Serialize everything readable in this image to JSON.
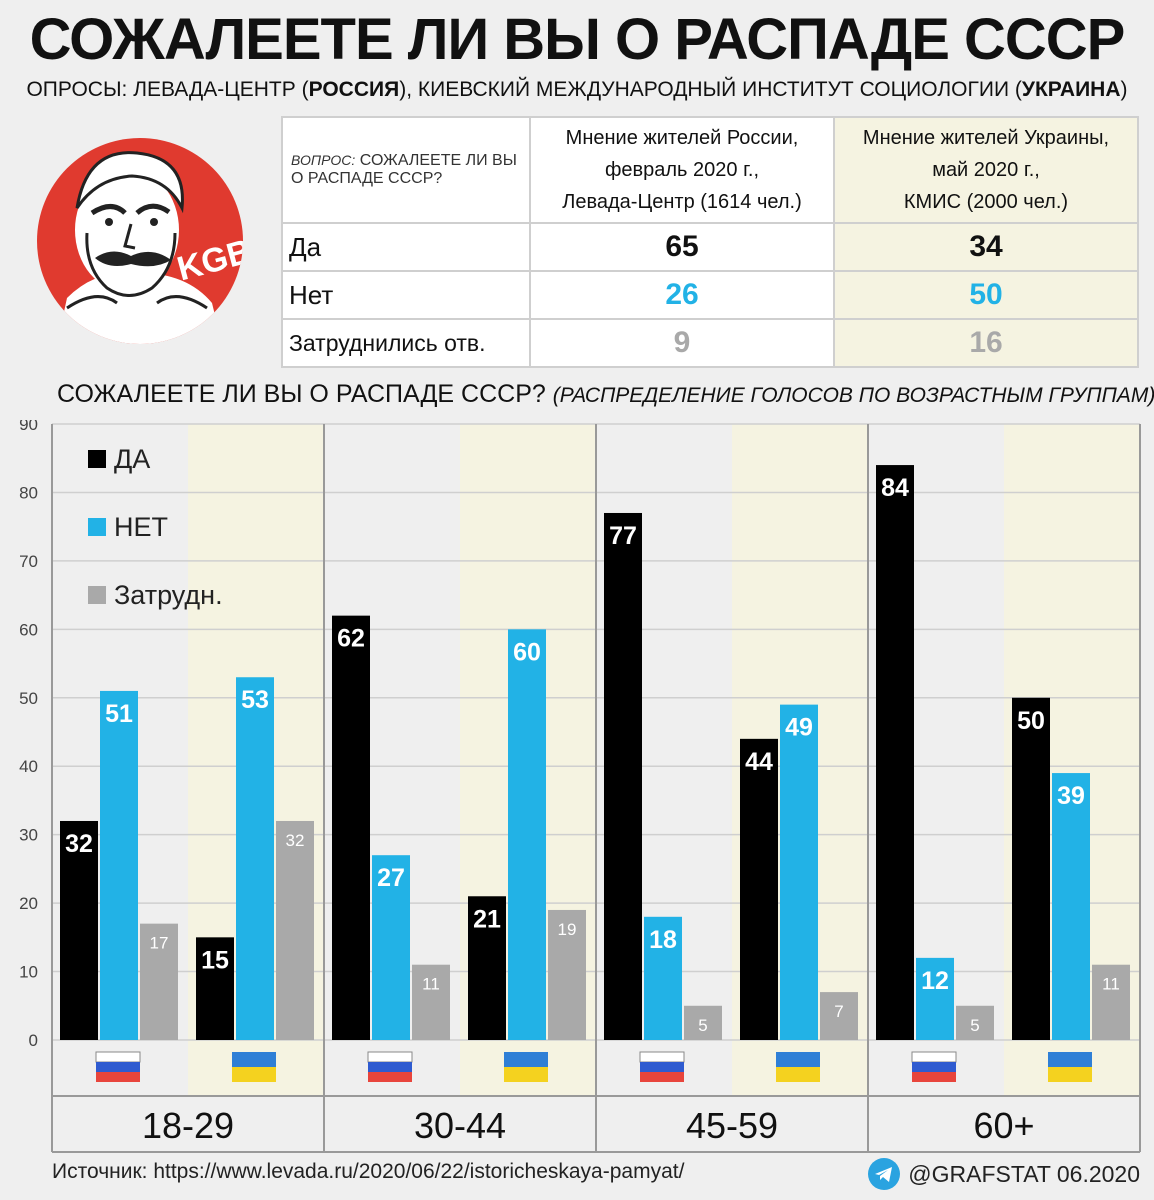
{
  "title": "СОЖАЛЕЕТЕ ЛИ ВЫ О РАСПАДЕ СССР",
  "subtitle": {
    "prefix": "ОПРОСЫ: ЛЕВАДА-ЦЕНТР (",
    "russia": "РОССИЯ",
    "middle": "), КИЕВСКИЙ МЕЖДУНАРОДНЫЙ ИНСТИТУТ СОЦИОЛОГИИ (",
    "ukraine": "УКРАИНА",
    "suffix": ")"
  },
  "logo": {
    "text": "KGB",
    "color": "#e03a2f"
  },
  "poll_table": {
    "question_prefix": "ВОПРОС:",
    "question": "СОЖАЛЕЕТЕ ЛИ ВЫ",
    "question_line2": "О РАСПАДЕ СССР?",
    "russia_header": [
      "Мнение жителей России,",
      "февраль 2020 г.,",
      "Левада-Центр (1614 чел.)"
    ],
    "ukraine_header": [
      "Мнение жителей Украины,",
      "май 2020 г.,",
      "КМИС (2000 чел.)"
    ],
    "rows": [
      {
        "label": "Да",
        "russia": "65",
        "ukraine": "34"
      },
      {
        "label": "Нет",
        "russia": "26",
        "ukraine": "50"
      },
      {
        "label": "Затруднились отв.",
        "russia": "9",
        "ukraine": "16"
      }
    ]
  },
  "chart_title": {
    "main": "СОЖАЛЕЕТЕ ЛИ ВЫ О РАСПАДЕ СССР?",
    "italic": "(РАСПРЕДЕЛЕНИЕ ГОЛОСОВ ПО ВОЗРАСТНЫМ ГРУППАМ)",
    "suffix": ", %"
  },
  "colors": {
    "yes": "#000000",
    "no": "#22b2e6",
    "hard": "#a9a9a9",
    "ua_bg": "#f5f3e1",
    "ru_bg": "#efefef"
  },
  "chart_data": {
    "type": "bar",
    "ylim": [
      0,
      90
    ],
    "yticks": [
      0,
      10,
      20,
      30,
      40,
      50,
      60,
      70,
      80,
      90
    ],
    "groups": [
      "18-29",
      "30-44",
      "45-59",
      "60+"
    ],
    "countries": [
      "Россия",
      "Украина"
    ],
    "legend": [
      "ДА",
      "НЕТ",
      "Затрудн."
    ],
    "legend_position": "top-left",
    "series": [
      {
        "name": "ДА",
        "values": {
          "ru": [
            32,
            62,
            77,
            84
          ],
          "ua": [
            15,
            21,
            44,
            50
          ]
        }
      },
      {
        "name": "НЕТ",
        "values": {
          "ru": [
            51,
            27,
            18,
            12
          ],
          "ua": [
            53,
            60,
            49,
            39
          ]
        }
      },
      {
        "name": "Затрудн.",
        "values": {
          "ru": [
            17,
            11,
            5,
            5
          ],
          "ua": [
            32,
            19,
            7,
            11
          ]
        }
      }
    ]
  },
  "source": "Источник: https://www.levada.ru/2020/06/22/istoricheskaya-pamyat/",
  "brand": "@GRAFSTAT 06.2020"
}
